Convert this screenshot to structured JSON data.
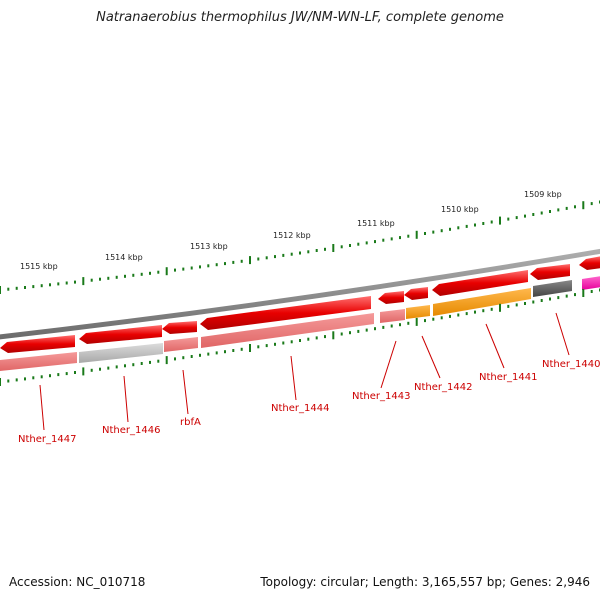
{
  "header": {
    "title": "Natranaerobius thermophilus JW/NM-WN-LF, complete genome"
  },
  "footer": {
    "accession": "Accession: NC_010718",
    "topology": "Topology: circular; Length: 3,165,557 bp; Genes: 2,946"
  },
  "scale_labels": [
    "1515 kbp",
    "1514 kbp",
    "1513 kbp",
    "1512 kbp",
    "1511 kbp",
    "1510 kbp",
    "1509 kbp"
  ],
  "genes": [
    {
      "name": "Nther_1447",
      "strand": "-",
      "color": "#e60000"
    },
    {
      "name": "Nther_1446",
      "strand": "-",
      "color": "#e60000"
    },
    {
      "name": "rbfA",
      "strand": "-",
      "color": "#e60000"
    },
    {
      "name": "Nther_1444",
      "strand": "-",
      "color": "#e60000"
    },
    {
      "name": "Nther_1443",
      "strand": "-",
      "color": "#e60000"
    },
    {
      "name": "Nther_1442",
      "strand": "-",
      "color": "#e60000"
    },
    {
      "name": "Nther_1441",
      "strand": "-",
      "color": "#e60000"
    },
    {
      "name": "Nther_1440",
      "strand": "-",
      "color": "#e60000"
    }
  ],
  "colors": {
    "backbone": "#808080",
    "tick": "#1a7a1a",
    "cds": "#e60000",
    "category_red": "#ef7777",
    "category_grey": "#bbbbbb",
    "category_orange": "#ff9900",
    "category_dark": "#555555",
    "category_magenta": "#ff00aa",
    "label": "#cc0000"
  }
}
